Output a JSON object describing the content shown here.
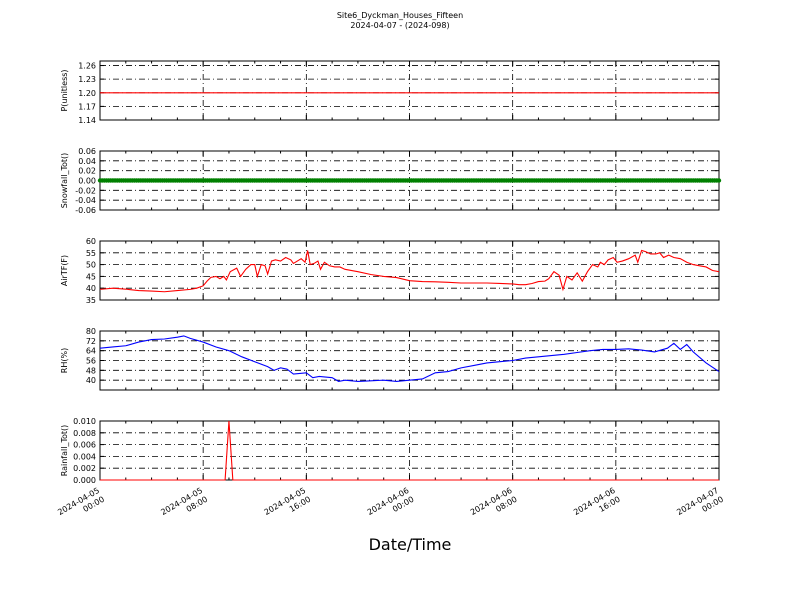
{
  "chart_data": {
    "title_line1": "Site6_Dyckman_Houses_Fifteen",
    "title_line2": "2024-04-07 - (2024-098)",
    "xlabel": "Date/Time",
    "x_tick_labels": [
      [
        "2024-04-05",
        "00:00"
      ],
      [
        "2024-04-05",
        "08:00"
      ],
      [
        "2024-04-05",
        "16:00"
      ],
      [
        "2024-04-06",
        "00:00"
      ],
      [
        "2024-04-06",
        "08:00"
      ],
      [
        "2024-04-06",
        "16:00"
      ],
      [
        "2024-04-07",
        "00:00"
      ]
    ],
    "x_range_hours": [
      0,
      48
    ],
    "panels": [
      {
        "type": "line",
        "ylabel": "P(unitless)",
        "color": "#ff0000",
        "ylim": [
          1.14,
          1.27
        ],
        "yticks": [
          "1.26",
          "1.23",
          "1.20",
          "1.17",
          "1.14"
        ],
        "ytick_values": [
          1.26,
          1.23,
          1.2,
          1.17,
          1.14
        ],
        "grid": true,
        "points": [
          [
            0,
            1.2
          ],
          [
            48,
            1.2
          ]
        ]
      },
      {
        "type": "scatter",
        "ylabel": "Snowfall_Tot()",
        "color": "#008000",
        "ylim": [
          -0.06,
          0.06
        ],
        "yticks": [
          "0.06",
          "0.04",
          "0.02",
          "0.00",
          "-0.02",
          "-0.04",
          "-0.06"
        ],
        "ytick_values": [
          0.06,
          0.04,
          0.02,
          0.0,
          -0.02,
          -0.04,
          -0.06
        ],
        "grid": true,
        "constant_value": 0.0,
        "interval_minutes": 10
      },
      {
        "type": "line",
        "ylabel": "AirTF(F)",
        "color": "#ff0000",
        "ylim": [
          35,
          60
        ],
        "yticks": [
          "60",
          "55",
          "50",
          "45",
          "40",
          "35"
        ],
        "ytick_values": [
          60,
          55,
          50,
          45,
          40,
          35
        ],
        "grid": true,
        "points": [
          [
            0,
            39.5
          ],
          [
            1,
            40
          ],
          [
            2,
            39.6
          ],
          [
            3,
            39
          ],
          [
            4,
            38.8
          ],
          [
            5,
            38.5
          ],
          [
            6,
            39
          ],
          [
            7,
            39.5
          ],
          [
            7.5,
            40
          ],
          [
            8,
            41
          ],
          [
            8.3,
            43
          ],
          [
            8.6,
            44.6
          ],
          [
            9,
            45
          ],
          [
            9.3,
            44
          ],
          [
            9.6,
            45
          ],
          [
            9.8,
            43.5
          ],
          [
            10.1,
            47
          ],
          [
            10.6,
            48.5
          ],
          [
            10.9,
            45
          ],
          [
            11.3,
            48
          ],
          [
            11.7,
            50
          ],
          [
            12,
            50
          ],
          [
            12.2,
            45
          ],
          [
            12.5,
            50
          ],
          [
            12.8,
            49.5
          ],
          [
            13,
            46
          ],
          [
            13.3,
            51.5
          ],
          [
            13.6,
            52
          ],
          [
            14,
            51.5
          ],
          [
            14.4,
            53
          ],
          [
            14.8,
            52
          ],
          [
            15,
            50.5
          ],
          [
            15.3,
            51.5
          ],
          [
            15.6,
            52.5
          ],
          [
            15.9,
            51
          ],
          [
            16.1,
            56
          ],
          [
            16.3,
            50
          ],
          [
            16.6,
            50.5
          ],
          [
            16.9,
            51.5
          ],
          [
            17.1,
            48
          ],
          [
            17.4,
            51
          ],
          [
            17.8,
            49.5
          ],
          [
            18.2,
            49
          ],
          [
            18.6,
            49
          ],
          [
            19,
            48
          ],
          [
            20,
            47
          ],
          [
            21,
            45.8
          ],
          [
            22,
            45
          ],
          [
            23,
            44.5
          ],
          [
            24,
            43.2
          ],
          [
            25,
            42.8
          ],
          [
            26,
            42.7
          ],
          [
            27,
            42.5
          ],
          [
            28,
            42.2
          ],
          [
            29,
            42.2
          ],
          [
            30,
            42.2
          ],
          [
            31,
            42
          ],
          [
            32,
            41.8
          ],
          [
            32.5,
            41.5
          ],
          [
            33,
            41.5
          ],
          [
            33.5,
            42
          ],
          [
            34,
            42.8
          ],
          [
            34.5,
            43
          ],
          [
            34.8,
            44
          ],
          [
            35.2,
            47
          ],
          [
            35.6,
            45.5
          ],
          [
            35.9,
            39.5
          ],
          [
            36.2,
            45
          ],
          [
            36.6,
            43.5
          ],
          [
            37,
            46.5
          ],
          [
            37.4,
            43
          ],
          [
            37.8,
            47
          ],
          [
            38.2,
            50
          ],
          [
            38.6,
            49
          ],
          [
            38.8,
            51
          ],
          [
            39.1,
            50
          ],
          [
            39.4,
            52
          ],
          [
            39.8,
            53
          ],
          [
            40.1,
            51
          ],
          [
            40.5,
            51.5
          ],
          [
            41,
            52.5
          ],
          [
            41.5,
            54
          ],
          [
            41.7,
            51
          ],
          [
            42,
            56
          ],
          [
            42.3,
            55.5
          ],
          [
            42.7,
            54.5
          ],
          [
            43.1,
            54.5
          ],
          [
            43.4,
            55
          ],
          [
            43.7,
            53
          ],
          [
            44.1,
            54
          ],
          [
            44.5,
            53
          ],
          [
            45,
            52.5
          ],
          [
            45.5,
            51
          ],
          [
            46,
            50
          ],
          [
            46.5,
            49.5
          ],
          [
            47,
            49
          ],
          [
            47.5,
            47.5
          ],
          [
            48,
            47
          ]
        ]
      },
      {
        "type": "line",
        "ylabel": "RH(%)",
        "color": "#0000ff",
        "ylim": [
          32,
          80
        ],
        "yticks": [
          "80",
          "72",
          "64",
          "56",
          "48",
          "40"
        ],
        "ytick_values": [
          80,
          72,
          64,
          56,
          48,
          40
        ],
        "grid": true,
        "points": [
          [
            0,
            66
          ],
          [
            1,
            67
          ],
          [
            2,
            68
          ],
          [
            3,
            71
          ],
          [
            4,
            73
          ],
          [
            5,
            73.5
          ],
          [
            6,
            75
          ],
          [
            6.5,
            76
          ],
          [
            7,
            74
          ],
          [
            8,
            71
          ],
          [
            9,
            67
          ],
          [
            10,
            64
          ],
          [
            11,
            59
          ],
          [
            12,
            55
          ],
          [
            13,
            51
          ],
          [
            13.5,
            48
          ],
          [
            14,
            50
          ],
          [
            14.5,
            49
          ],
          [
            15,
            45
          ],
          [
            16,
            46
          ],
          [
            16.5,
            42
          ],
          [
            17,
            43
          ],
          [
            18,
            42
          ],
          [
            18.5,
            39
          ],
          [
            19,
            40
          ],
          [
            20,
            39
          ],
          [
            21,
            39.5
          ],
          [
            22,
            40
          ],
          [
            23,
            39
          ],
          [
            24,
            40
          ],
          [
            25,
            41
          ],
          [
            26,
            46
          ],
          [
            27,
            47
          ],
          [
            28,
            50
          ],
          [
            29,
            52
          ],
          [
            30,
            54
          ],
          [
            31,
            55
          ],
          [
            32,
            56
          ],
          [
            33,
            58
          ],
          [
            34,
            59
          ],
          [
            35,
            60
          ],
          [
            36,
            61
          ],
          [
            37,
            62.5
          ],
          [
            38,
            64
          ],
          [
            39,
            65
          ],
          [
            40,
            65
          ],
          [
            41,
            65.5
          ],
          [
            42,
            64.5
          ],
          [
            43,
            63
          ],
          [
            44,
            66
          ],
          [
            44.5,
            70
          ],
          [
            45,
            65
          ],
          [
            45.5,
            69
          ],
          [
            46,
            63
          ],
          [
            47,
            54
          ],
          [
            48,
            47
          ]
        ]
      },
      {
        "type": "line",
        "ylabel": "Rainfall_Tot()",
        "color": "#ff0000",
        "ylim": [
          0,
          0.01
        ],
        "yticks": [
          "0.010",
          "0.008",
          "0.006",
          "0.004",
          "0.002",
          "0.000"
        ],
        "ytick_values": [
          0.01,
          0.008,
          0.006,
          0.004,
          0.002,
          0.0
        ],
        "grid": true,
        "points": [
          [
            0,
            0
          ],
          [
            9.7,
            0
          ],
          [
            10,
            0.01
          ],
          [
            10.3,
            0
          ],
          [
            48,
            0
          ]
        ]
      }
    ]
  }
}
